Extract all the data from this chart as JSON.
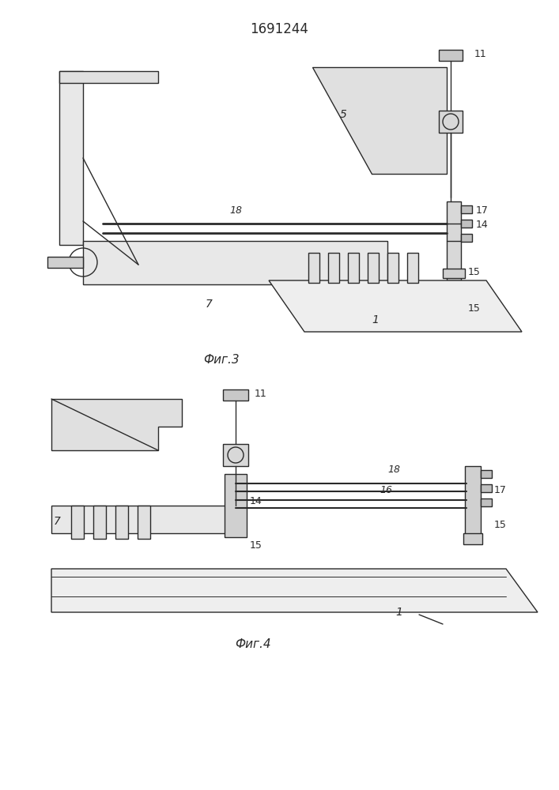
{
  "title": "1691244",
  "fig3_label": "Фиг.3",
  "fig4_label": "Фиг.4",
  "bg": "#ffffff",
  "lc": "#2a2a2a",
  "lw": 1.0
}
